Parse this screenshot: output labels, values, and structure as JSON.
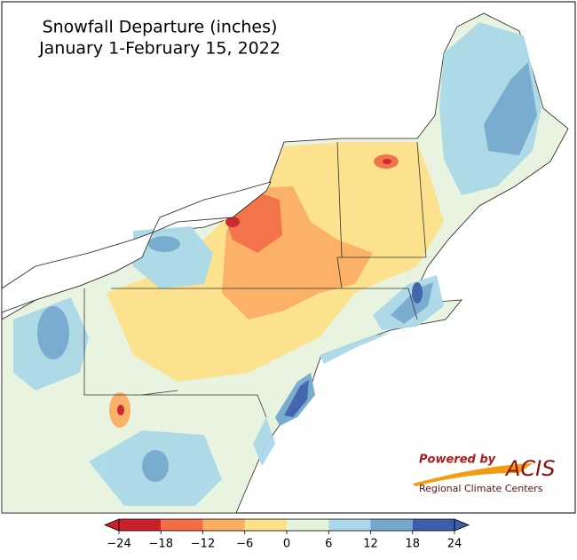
{
  "title": "Snowfall Departure (inches)",
  "subtitle": "January 1-February 15, 2022",
  "colorbar": {
    "ticks": [
      {
        "value": -24,
        "label": "−24"
      },
      {
        "value": -18,
        "label": "−18"
      },
      {
        "value": -12,
        "label": "−12"
      },
      {
        "value": -6,
        "label": "−6"
      },
      0,
      6,
      12,
      18,
      24
    ],
    "colors": [
      "#c9202c",
      "#f46d43",
      "#fdae61",
      "#fee08b",
      "#e6f4dc",
      "#abd9e9",
      "#74a9cf",
      "#3b5fab"
    ]
  },
  "logo": {
    "powered": "Powered by",
    "name": "ACIS",
    "subtitle": "Regional Climate Centers"
  }
}
